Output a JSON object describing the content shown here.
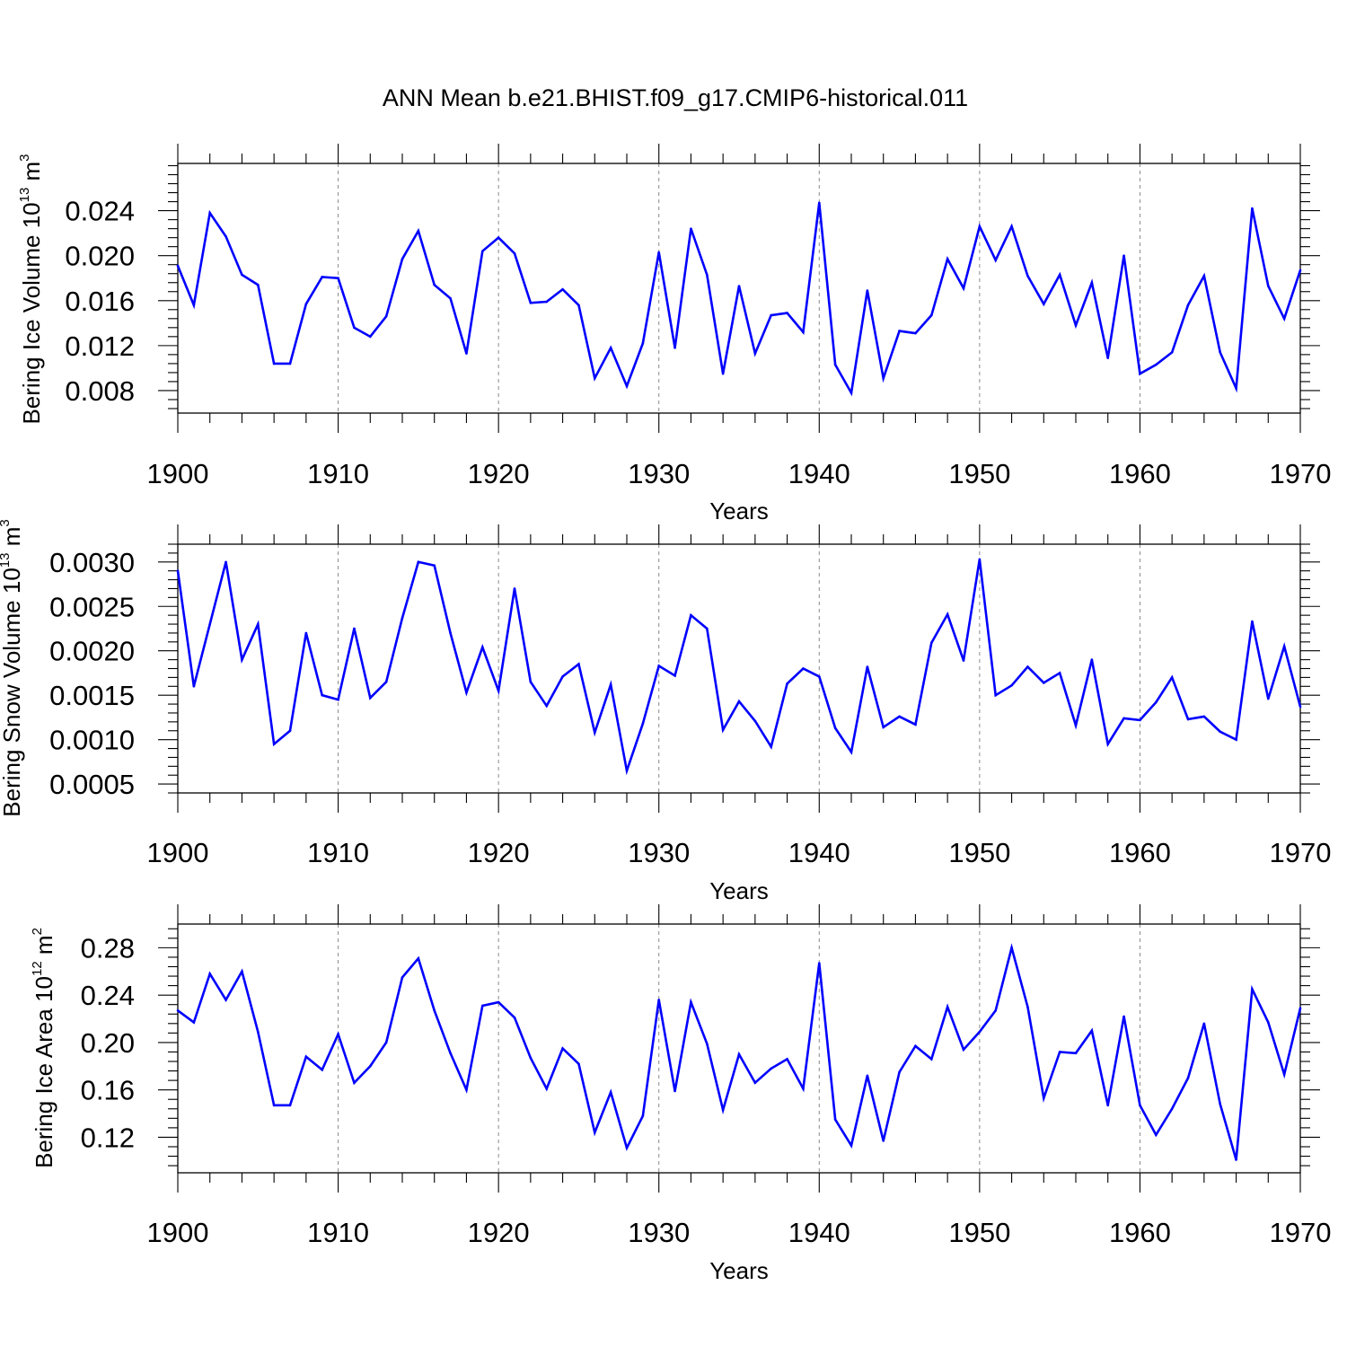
{
  "title": "ANN Mean b.e21.BHIST.f09_g17.CMIP6-historical.011",
  "colors": {
    "line": "#0000ff",
    "axes": "#000000",
    "grid": "#8a8a8a"
  },
  "chart_data": [
    {
      "type": "line",
      "ylabel": {
        "text": "Bering Ice Volume 10",
        "exp": "13",
        "unit": " m",
        "unit_exp": "3"
      },
      "xlabel": "Years",
      "xlim": [
        1900,
        1970
      ],
      "ylim": [
        0.006,
        0.0282
      ],
      "xticks": [
        "1900",
        "1910",
        "1920",
        "1930",
        "1940",
        "1950",
        "1960",
        "1970"
      ],
      "yticks": [
        "0.008",
        "0.012",
        "0.016",
        "0.020",
        "0.024"
      ],
      "grid": "x dashed",
      "x": [
        1900,
        1901,
        1902,
        1903,
        1904,
        1905,
        1906,
        1907,
        1908,
        1909,
        1910,
        1911,
        1912,
        1913,
        1914,
        1915,
        1916,
        1917,
        1918,
        1919,
        1920,
        1921,
        1922,
        1923,
        1924,
        1925,
        1926,
        1927,
        1928,
        1929,
        1930,
        1931,
        1932,
        1933,
        1934,
        1935,
        1936,
        1937,
        1938,
        1939,
        1940,
        1941,
        1942,
        1943,
        1944,
        1945,
        1946,
        1947,
        1948,
        1949,
        1950,
        1951,
        1952,
        1953,
        1954,
        1955,
        1956,
        1957,
        1958,
        1959,
        1960,
        1961,
        1962,
        1963,
        1964,
        1965,
        1966,
        1967,
        1968,
        1969,
        1970
      ],
      "values": [
        0.0191,
        0.0156,
        0.0238,
        0.0217,
        0.0183,
        0.0174,
        0.0104,
        0.0104,
        0.0157,
        0.0181,
        0.018,
        0.0136,
        0.0128,
        0.0146,
        0.0197,
        0.0222,
        0.0174,
        0.0162,
        0.0113,
        0.0204,
        0.0216,
        0.0202,
        0.0158,
        0.0159,
        0.017,
        0.0156,
        0.0091,
        0.0118,
        0.0084,
        0.0122,
        0.0203,
        0.0118,
        0.0224,
        0.0183,
        0.0095,
        0.0173,
        0.0113,
        0.0147,
        0.0149,
        0.0132,
        0.0247,
        0.0103,
        0.0078,
        0.0169,
        0.0091,
        0.0133,
        0.0131,
        0.0147,
        0.0197,
        0.0171,
        0.0226,
        0.0196,
        0.0226,
        0.0182,
        0.0157,
        0.0183,
        0.0138,
        0.0176,
        0.0109,
        0.02,
        0.0095,
        0.0103,
        0.0114,
        0.0156,
        0.0182,
        0.0114,
        0.0082,
        0.0242,
        0.0173,
        0.0144,
        0.0187
      ]
    },
    {
      "type": "line",
      "ylabel": {
        "text": "Bering Snow Volume 10",
        "exp": "13",
        "unit": " m",
        "unit_exp": "3"
      },
      "xlabel": "Years",
      "xlim": [
        1900,
        1970
      ],
      "ylim": [
        0.0004,
        0.0032
      ],
      "xticks": [
        "1900",
        "1910",
        "1920",
        "1930",
        "1940",
        "1950",
        "1960",
        "1970"
      ],
      "yticks": [
        "0.0005",
        "0.0010",
        "0.0015",
        "0.0020",
        "0.0025",
        "0.0030"
      ],
      "grid": "x dashed",
      "x": [
        1900,
        1901,
        1902,
        1903,
        1904,
        1905,
        1906,
        1907,
        1908,
        1909,
        1910,
        1911,
        1912,
        1913,
        1914,
        1915,
        1916,
        1917,
        1918,
        1919,
        1920,
        1921,
        1922,
        1923,
        1924,
        1925,
        1926,
        1927,
        1928,
        1929,
        1930,
        1931,
        1932,
        1933,
        1934,
        1935,
        1936,
        1937,
        1938,
        1939,
        1940,
        1941,
        1942,
        1943,
        1944,
        1945,
        1946,
        1947,
        1948,
        1949,
        1950,
        1951,
        1952,
        1953,
        1954,
        1955,
        1956,
        1957,
        1958,
        1959,
        1960,
        1961,
        1962,
        1963,
        1964,
        1965,
        1966,
        1967,
        1968,
        1969,
        1970
      ],
      "values": [
        0.0029,
        0.0016,
        0.0023,
        0.003,
        0.0019,
        0.0023,
        0.00095,
        0.0011,
        0.0022,
        0.0015,
        0.00145,
        0.00225,
        0.00147,
        0.00165,
        0.00237,
        0.003,
        0.00296,
        0.0022,
        0.00153,
        0.00204,
        0.00155,
        0.0027,
        0.00165,
        0.00138,
        0.00171,
        0.00185,
        0.00108,
        0.00162,
        0.00065,
        0.00118,
        0.00183,
        0.00172,
        0.0024,
        0.00225,
        0.00111,
        0.00143,
        0.00121,
        0.00092,
        0.00163,
        0.0018,
        0.00171,
        0.00113,
        0.00086,
        0.00182,
        0.00114,
        0.00126,
        0.00117,
        0.00209,
        0.00241,
        0.00189,
        0.00303,
        0.0015,
        0.00161,
        0.00182,
        0.00164,
        0.00175,
        0.00116,
        0.0019,
        0.00095,
        0.00124,
        0.00122,
        0.00142,
        0.0017,
        0.00123,
        0.00126,
        0.00109,
        0.001,
        0.00233,
        0.00146,
        0.00205,
        0.00137
      ]
    },
    {
      "type": "line",
      "ylabel": {
        "text": "Bering Ice Area 10",
        "exp": "12",
        "unit": " m",
        "unit_exp": "2"
      },
      "xlabel": "Years",
      "xlim": [
        1900,
        1970
      ],
      "ylim": [
        0.09,
        0.3
      ],
      "xticks": [
        "1900",
        "1910",
        "1920",
        "1930",
        "1940",
        "1950",
        "1960",
        "1970"
      ],
      "yticks": [
        "0.12",
        "0.16",
        "0.20",
        "0.24",
        "0.28"
      ],
      "grid": "x dashed",
      "x": [
        1900,
        1901,
        1902,
        1903,
        1904,
        1905,
        1906,
        1907,
        1908,
        1909,
        1910,
        1911,
        1912,
        1913,
        1914,
        1915,
        1916,
        1917,
        1918,
        1919,
        1920,
        1921,
        1922,
        1923,
        1924,
        1925,
        1926,
        1927,
        1928,
        1929,
        1930,
        1931,
        1932,
        1933,
        1934,
        1935,
        1936,
        1937,
        1938,
        1939,
        1940,
        1941,
        1942,
        1943,
        1944,
        1945,
        1946,
        1947,
        1948,
        1949,
        1950,
        1951,
        1952,
        1953,
        1954,
        1955,
        1956,
        1957,
        1958,
        1959,
        1960,
        1961,
        1962,
        1963,
        1964,
        1965,
        1966,
        1967,
        1968,
        1969,
        1970
      ],
      "values": [
        0.227,
        0.217,
        0.258,
        0.236,
        0.26,
        0.209,
        0.147,
        0.147,
        0.188,
        0.177,
        0.207,
        0.166,
        0.18,
        0.2,
        0.255,
        0.271,
        0.227,
        0.191,
        0.16,
        0.231,
        0.234,
        0.221,
        0.187,
        0.161,
        0.195,
        0.182,
        0.124,
        0.158,
        0.111,
        0.138,
        0.236,
        0.159,
        0.234,
        0.199,
        0.143,
        0.19,
        0.166,
        0.178,
        0.186,
        0.161,
        0.267,
        0.135,
        0.113,
        0.172,
        0.117,
        0.175,
        0.197,
        0.186,
        0.23,
        0.194,
        0.209,
        0.227,
        0.28,
        0.23,
        0.153,
        0.192,
        0.191,
        0.21,
        0.147,
        0.222,
        0.147,
        0.122,
        0.144,
        0.17,
        0.216,
        0.148,
        0.101,
        0.245,
        0.217,
        0.173,
        0.229
      ]
    }
  ]
}
